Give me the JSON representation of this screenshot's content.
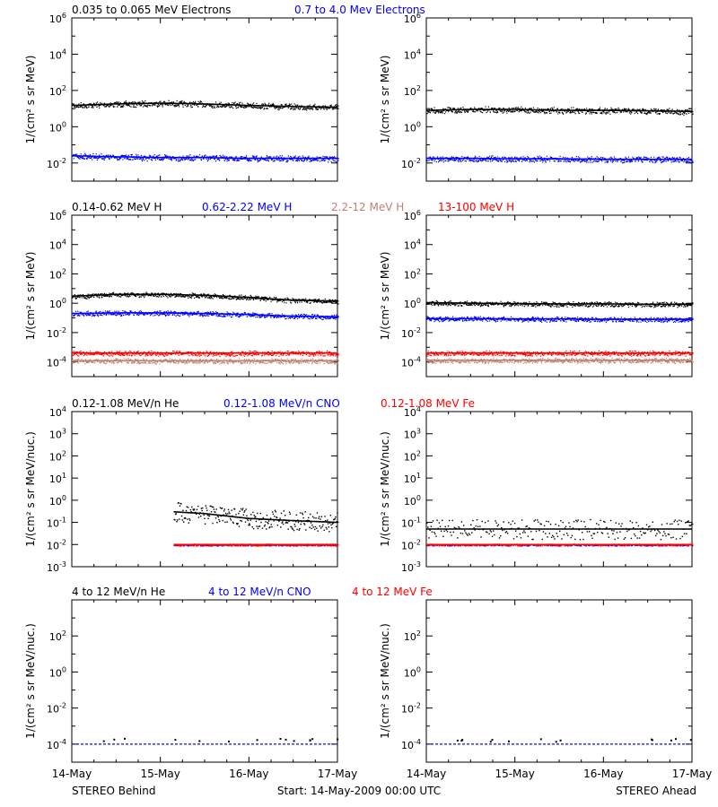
{
  "colors": {
    "axis": "#000000",
    "black": "#000000",
    "blue": "#0000ff",
    "red": "#ff0000",
    "tan": "#c08070"
  },
  "x_axis": {
    "ticks": [
      {
        "value": 0,
        "label": "14-May"
      },
      {
        "value": 1,
        "label": "15-May"
      },
      {
        "value": 2,
        "label": "16-May"
      },
      {
        "value": 3,
        "label": "17-May"
      }
    ]
  },
  "footer": {
    "left": "STEREO Behind",
    "center": "Start: 14-May-2009 00:00 UTC",
    "right": "STEREO Ahead"
  },
  "rows": [
    {
      "id": "electrons",
      "ylabel": "1/(cm² s sr MeV)",
      "ylog": [
        -3,
        6
      ],
      "ticks": [
        -2,
        0,
        2,
        4,
        6
      ],
      "legend": [
        {
          "text": "0.035 to 0.065 MeV Electrons",
          "color": "black"
        },
        {
          "text": "0.7 to 4.0 Mev Electrons",
          "color": "blue"
        }
      ]
    },
    {
      "id": "protons",
      "ylabel": "1/(cm² s sr MeV)",
      "ylog": [
        -5,
        6
      ],
      "ticks": [
        -4,
        -2,
        0,
        2,
        4,
        6
      ],
      "legend": [
        {
          "text": "0.14-0.62 MeV H",
          "color": "black"
        },
        {
          "text": "0.62-2.22 MeV H",
          "color": "blue"
        },
        {
          "text": "2.2-12 MeV H",
          "color": "tan"
        },
        {
          "text": "13-100 MeV H",
          "color": "red"
        }
      ]
    },
    {
      "id": "heavy_low",
      "ylabel": "1/(cm² s sr MeV/nuc.)",
      "ylog": [
        -3,
        4
      ],
      "ticks": [
        -3,
        -2,
        -1,
        0,
        1,
        2,
        3,
        4
      ],
      "legend": [
        {
          "text": "0.12-1.08 MeV/n He",
          "color": "black"
        },
        {
          "text": "0.12-1.08 MeV/n CNO",
          "color": "blue"
        },
        {
          "text": "0.12-1.08 MeV Fe",
          "color": "red"
        }
      ]
    },
    {
      "id": "heavy_high",
      "ylabel": "1/(cm² s sr MeV/nuc.)",
      "ylog": [
        -5,
        4
      ],
      "ticks": [
        -4,
        -2,
        0,
        2
      ],
      "legend": [
        {
          "text": "4 to 12 MeV/n He",
          "color": "black"
        },
        {
          "text": "4 to 12 MeV/n CNO",
          "color": "blue"
        },
        {
          "text": "4 to 12 MeV Fe",
          "color": "red"
        }
      ]
    }
  ],
  "chart_data": [
    {
      "type": "scatter",
      "row": 0,
      "spacecraft": "STEREO Behind",
      "xlim": [
        0,
        3
      ],
      "ylim": [
        0.001,
        1000000
      ],
      "yscale": "log",
      "series": [
        {
          "name": "0.035 to 0.065 MeV Electrons",
          "color": "black",
          "x": [
            0,
            0.5,
            1.0,
            1.5,
            2.0,
            2.5,
            3.0
          ],
          "y": [
            15,
            18,
            20,
            18,
            15,
            13,
            12
          ]
        },
        {
          "name": "0.7 to 4.0 Mev Electrons",
          "color": "blue",
          "x": [
            0,
            0.5,
            1.0,
            1.5,
            2.0,
            2.5,
            3.0
          ],
          "y": [
            0.025,
            0.022,
            0.02,
            0.02,
            0.018,
            0.018,
            0.018
          ]
        }
      ]
    },
    {
      "type": "scatter",
      "row": 0,
      "spacecraft": "STEREO Ahead",
      "xlim": [
        0,
        3
      ],
      "ylim": [
        0.001,
        1000000
      ],
      "yscale": "log",
      "series": [
        {
          "name": "0.035 to 0.065 MeV Electrons",
          "color": "black",
          "x": [
            0,
            0.5,
            1.0,
            1.5,
            2.0,
            2.5,
            3.0
          ],
          "y": [
            8,
            9,
            9,
            8,
            8,
            7.5,
            7
          ]
        },
        {
          "name": "0.7 to 4.0 Mev Electrons",
          "color": "blue",
          "x": [
            0,
            0.5,
            1.0,
            1.5,
            2.0,
            2.5,
            3.0
          ],
          "y": [
            0.018,
            0.018,
            0.017,
            0.017,
            0.016,
            0.016,
            0.016
          ]
        }
      ]
    },
    {
      "type": "scatter",
      "row": 1,
      "spacecraft": "STEREO Behind",
      "xlim": [
        0,
        3
      ],
      "ylim": [
        1e-05,
        1000000
      ],
      "yscale": "log",
      "series": [
        {
          "name": "0.14-0.62 MeV H",
          "color": "black",
          "x": [
            0,
            0.5,
            1.0,
            1.5,
            2.0,
            2.5,
            3.0
          ],
          "y": [
            3,
            4,
            4,
            3.5,
            2.5,
            1.6,
            1.4
          ]
        },
        {
          "name": "0.62-2.22 MeV H",
          "color": "blue",
          "x": [
            0,
            0.5,
            1.0,
            1.5,
            2.0,
            2.5,
            3.0
          ],
          "y": [
            0.2,
            0.22,
            0.22,
            0.2,
            0.17,
            0.13,
            0.12
          ]
        },
        {
          "name": "2.2-12 MeV H",
          "color": "tan",
          "x": [
            0,
            0.5,
            1.0,
            1.5,
            2.0,
            2.5,
            3.0
          ],
          "y": [
            0.00012,
            0.00012,
            0.00012,
            0.00012,
            0.00012,
            0.00012,
            0.00012
          ]
        },
        {
          "name": "13-100 MeV H",
          "color": "red",
          "x": [
            0,
            0.5,
            1.0,
            1.5,
            2.0,
            2.5,
            3.0
          ],
          "y": [
            0.0004,
            0.0004,
            0.0004,
            0.0004,
            0.0004,
            0.0004,
            0.0004
          ]
        }
      ]
    },
    {
      "type": "scatter",
      "row": 1,
      "spacecraft": "STEREO Ahead",
      "xlim": [
        0,
        3
      ],
      "ylim": [
        1e-05,
        1000000
      ],
      "yscale": "log",
      "series": [
        {
          "name": "0.14-0.62 MeV H",
          "color": "black",
          "x": [
            0,
            0.5,
            1.0,
            1.5,
            2.0,
            2.5,
            3.0
          ],
          "y": [
            1.1,
            1.0,
            0.95,
            0.9,
            0.9,
            0.85,
            0.85
          ]
        },
        {
          "name": "0.62-2.22 MeV H",
          "color": "blue",
          "x": [
            0,
            0.5,
            1.0,
            1.5,
            2.0,
            2.5,
            3.0
          ],
          "y": [
            0.09,
            0.09,
            0.085,
            0.085,
            0.08,
            0.08,
            0.08
          ]
        },
        {
          "name": "2.2-12 MeV H",
          "color": "tan",
          "x": [
            0,
            0.5,
            1.0,
            1.5,
            2.0,
            2.5,
            3.0
          ],
          "y": [
            0.00013,
            0.00013,
            0.00013,
            0.00013,
            0.00013,
            0.00013,
            0.00013
          ]
        },
        {
          "name": "13-100 MeV H",
          "color": "red",
          "x": [
            0,
            0.5,
            1.0,
            1.5,
            2.0,
            2.5,
            3.0
          ],
          "y": [
            0.0004,
            0.0004,
            0.0004,
            0.0004,
            0.0004,
            0.0004,
            0.0004
          ]
        }
      ]
    },
    {
      "type": "scatter",
      "row": 2,
      "spacecraft": "STEREO Behind",
      "xlim": [
        0,
        3
      ],
      "ylim": [
        0.001,
        10000
      ],
      "yscale": "log",
      "series": [
        {
          "name": "0.12-1.08 MeV/n He",
          "color": "black",
          "x": [
            1.15,
            1.5,
            2.0,
            2.5,
            3.0
          ],
          "y": [
            0.3,
            0.25,
            0.15,
            0.12,
            0.1
          ]
        },
        {
          "name": "0.12-1.08 MeV/n CNO",
          "color": "blue",
          "x": [
            1.15,
            1.5,
            2.0,
            2.5,
            3.0
          ],
          "y": [
            0.01,
            0.01,
            0.01,
            0.01,
            0.01
          ]
        },
        {
          "name": "0.12-1.08 MeV Fe",
          "color": "red",
          "x": [
            1.15,
            1.5,
            2.0,
            2.5,
            3.0
          ],
          "y": [
            0.01,
            0.01,
            0.01,
            0.01,
            0.01
          ]
        }
      ]
    },
    {
      "type": "scatter",
      "row": 2,
      "spacecraft": "STEREO Ahead",
      "xlim": [
        0,
        3
      ],
      "ylim": [
        0.001,
        10000
      ],
      "yscale": "log",
      "series": [
        {
          "name": "0.12-1.08 MeV/n He",
          "color": "black",
          "x": [
            0,
            0.5,
            1.0,
            1.5,
            2.0,
            2.5,
            3.0
          ],
          "y": [
            0.05,
            0.05,
            0.05,
            0.05,
            0.05,
            0.05,
            0.05
          ]
        },
        {
          "name": "0.12-1.08 MeV/n CNO",
          "color": "blue",
          "x": [
            0,
            0.5,
            1.0,
            1.5,
            2.0,
            2.5,
            3.0
          ],
          "y": [
            0.01,
            0.01,
            0.01,
            0.01,
            0.01,
            0.01,
            0.01
          ]
        },
        {
          "name": "0.12-1.08 MeV Fe",
          "color": "red",
          "x": [
            0,
            0.5,
            1.0,
            1.5,
            2.0,
            2.5,
            3.0
          ],
          "y": [
            0.01,
            0.01,
            0.01,
            0.01,
            0.01,
            0.01,
            0.01
          ]
        }
      ]
    },
    {
      "type": "scatter",
      "row": 3,
      "spacecraft": "STEREO Behind",
      "xlim": [
        0,
        3
      ],
      "ylim": [
        1e-05,
        10000
      ],
      "yscale": "log",
      "series": [
        {
          "name": "4 to 12 MeV/n He",
          "color": "black",
          "x": [
            0,
            0.5,
            1.0,
            1.5,
            2.0,
            2.5,
            3.0
          ],
          "y": [
            0.0001,
            0.0001,
            0.0001,
            0.0001,
            0.0001,
            0.0001,
            0.0001
          ]
        },
        {
          "name": "4 to 12 MeV/n CNO",
          "color": "blue",
          "x": [
            0,
            0.5,
            1.0,
            1.5,
            2.0,
            2.5,
            3.0
          ],
          "y": [
            0.0001,
            0.0001,
            0.0001,
            0.0001,
            0.0001,
            0.0001,
            0.0001
          ]
        },
        {
          "name": "4 to 12 MeV Fe",
          "color": "red",
          "x": [],
          "y": []
        }
      ]
    },
    {
      "type": "scatter",
      "row": 3,
      "spacecraft": "STEREO Ahead",
      "xlim": [
        0,
        3
      ],
      "ylim": [
        1e-05,
        10000
      ],
      "yscale": "log",
      "series": [
        {
          "name": "4 to 12 MeV/n He",
          "color": "black",
          "x": [
            0,
            0.5,
            1.0,
            1.5,
            2.0,
            2.5,
            3.0
          ],
          "y": [
            0.0001,
            0.0001,
            0.0001,
            0.0001,
            0.0001,
            0.0001,
            0.0001
          ]
        },
        {
          "name": "4 to 12 MeV/n CNO",
          "color": "blue",
          "x": [
            0,
            0.5,
            1.0,
            1.5,
            2.0,
            2.5,
            3.0
          ],
          "y": [
            0.0001,
            0.0001,
            0.0001,
            0.0001,
            0.0001,
            0.0001,
            0.0001
          ]
        },
        {
          "name": "4 to 12 MeV Fe",
          "color": "red",
          "x": [],
          "y": []
        }
      ]
    }
  ]
}
